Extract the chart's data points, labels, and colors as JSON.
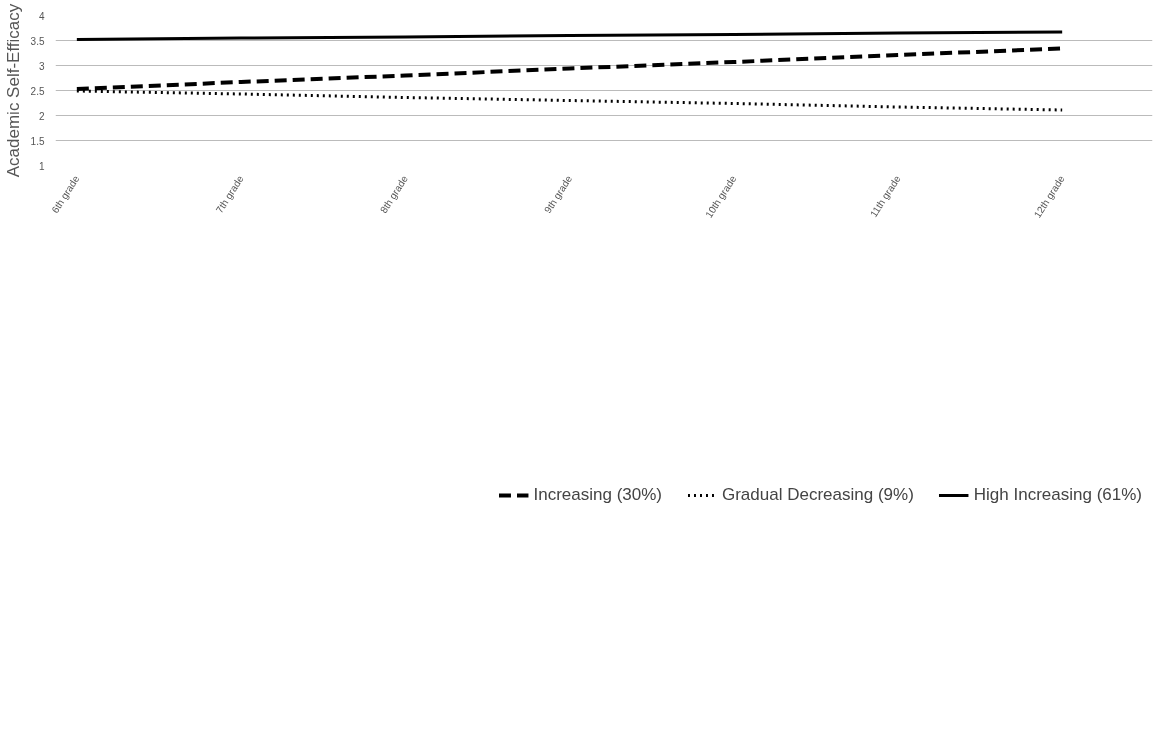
{
  "chart_data": {
    "type": "line",
    "ylabel": "Academic Self-Efficacy",
    "categories": [
      "6th grade",
      "7th grade",
      "8th grade",
      "9th grade",
      "10th grade",
      "11th grade",
      "12th grade"
    ],
    "series": [
      {
        "name": "Increasing (30%)",
        "color": "#000000",
        "line_style": "dashed",
        "values": [
          2.53,
          2.67,
          2.8,
          2.94,
          3.07,
          3.21,
          3.34
        ]
      },
      {
        "name": "Gradual Decreasing (9%)",
        "color": "#000000",
        "line_style": "dotted",
        "values": [
          2.49,
          2.43,
          2.36,
          2.3,
          2.24,
          2.17,
          2.11
        ]
      },
      {
        "name": "High Increasing (61%)",
        "color": "#000000",
        "line_style": "solid",
        "values": [
          3.52,
          3.55,
          3.57,
          3.6,
          3.62,
          3.65,
          3.67
        ]
      }
    ],
    "ylim": [
      1,
      4
    ],
    "yticks": [
      1,
      1.5,
      2,
      2.5,
      3,
      3.5,
      4
    ],
    "grid": "y",
    "legend": "bottom",
    "marker": "none"
  }
}
